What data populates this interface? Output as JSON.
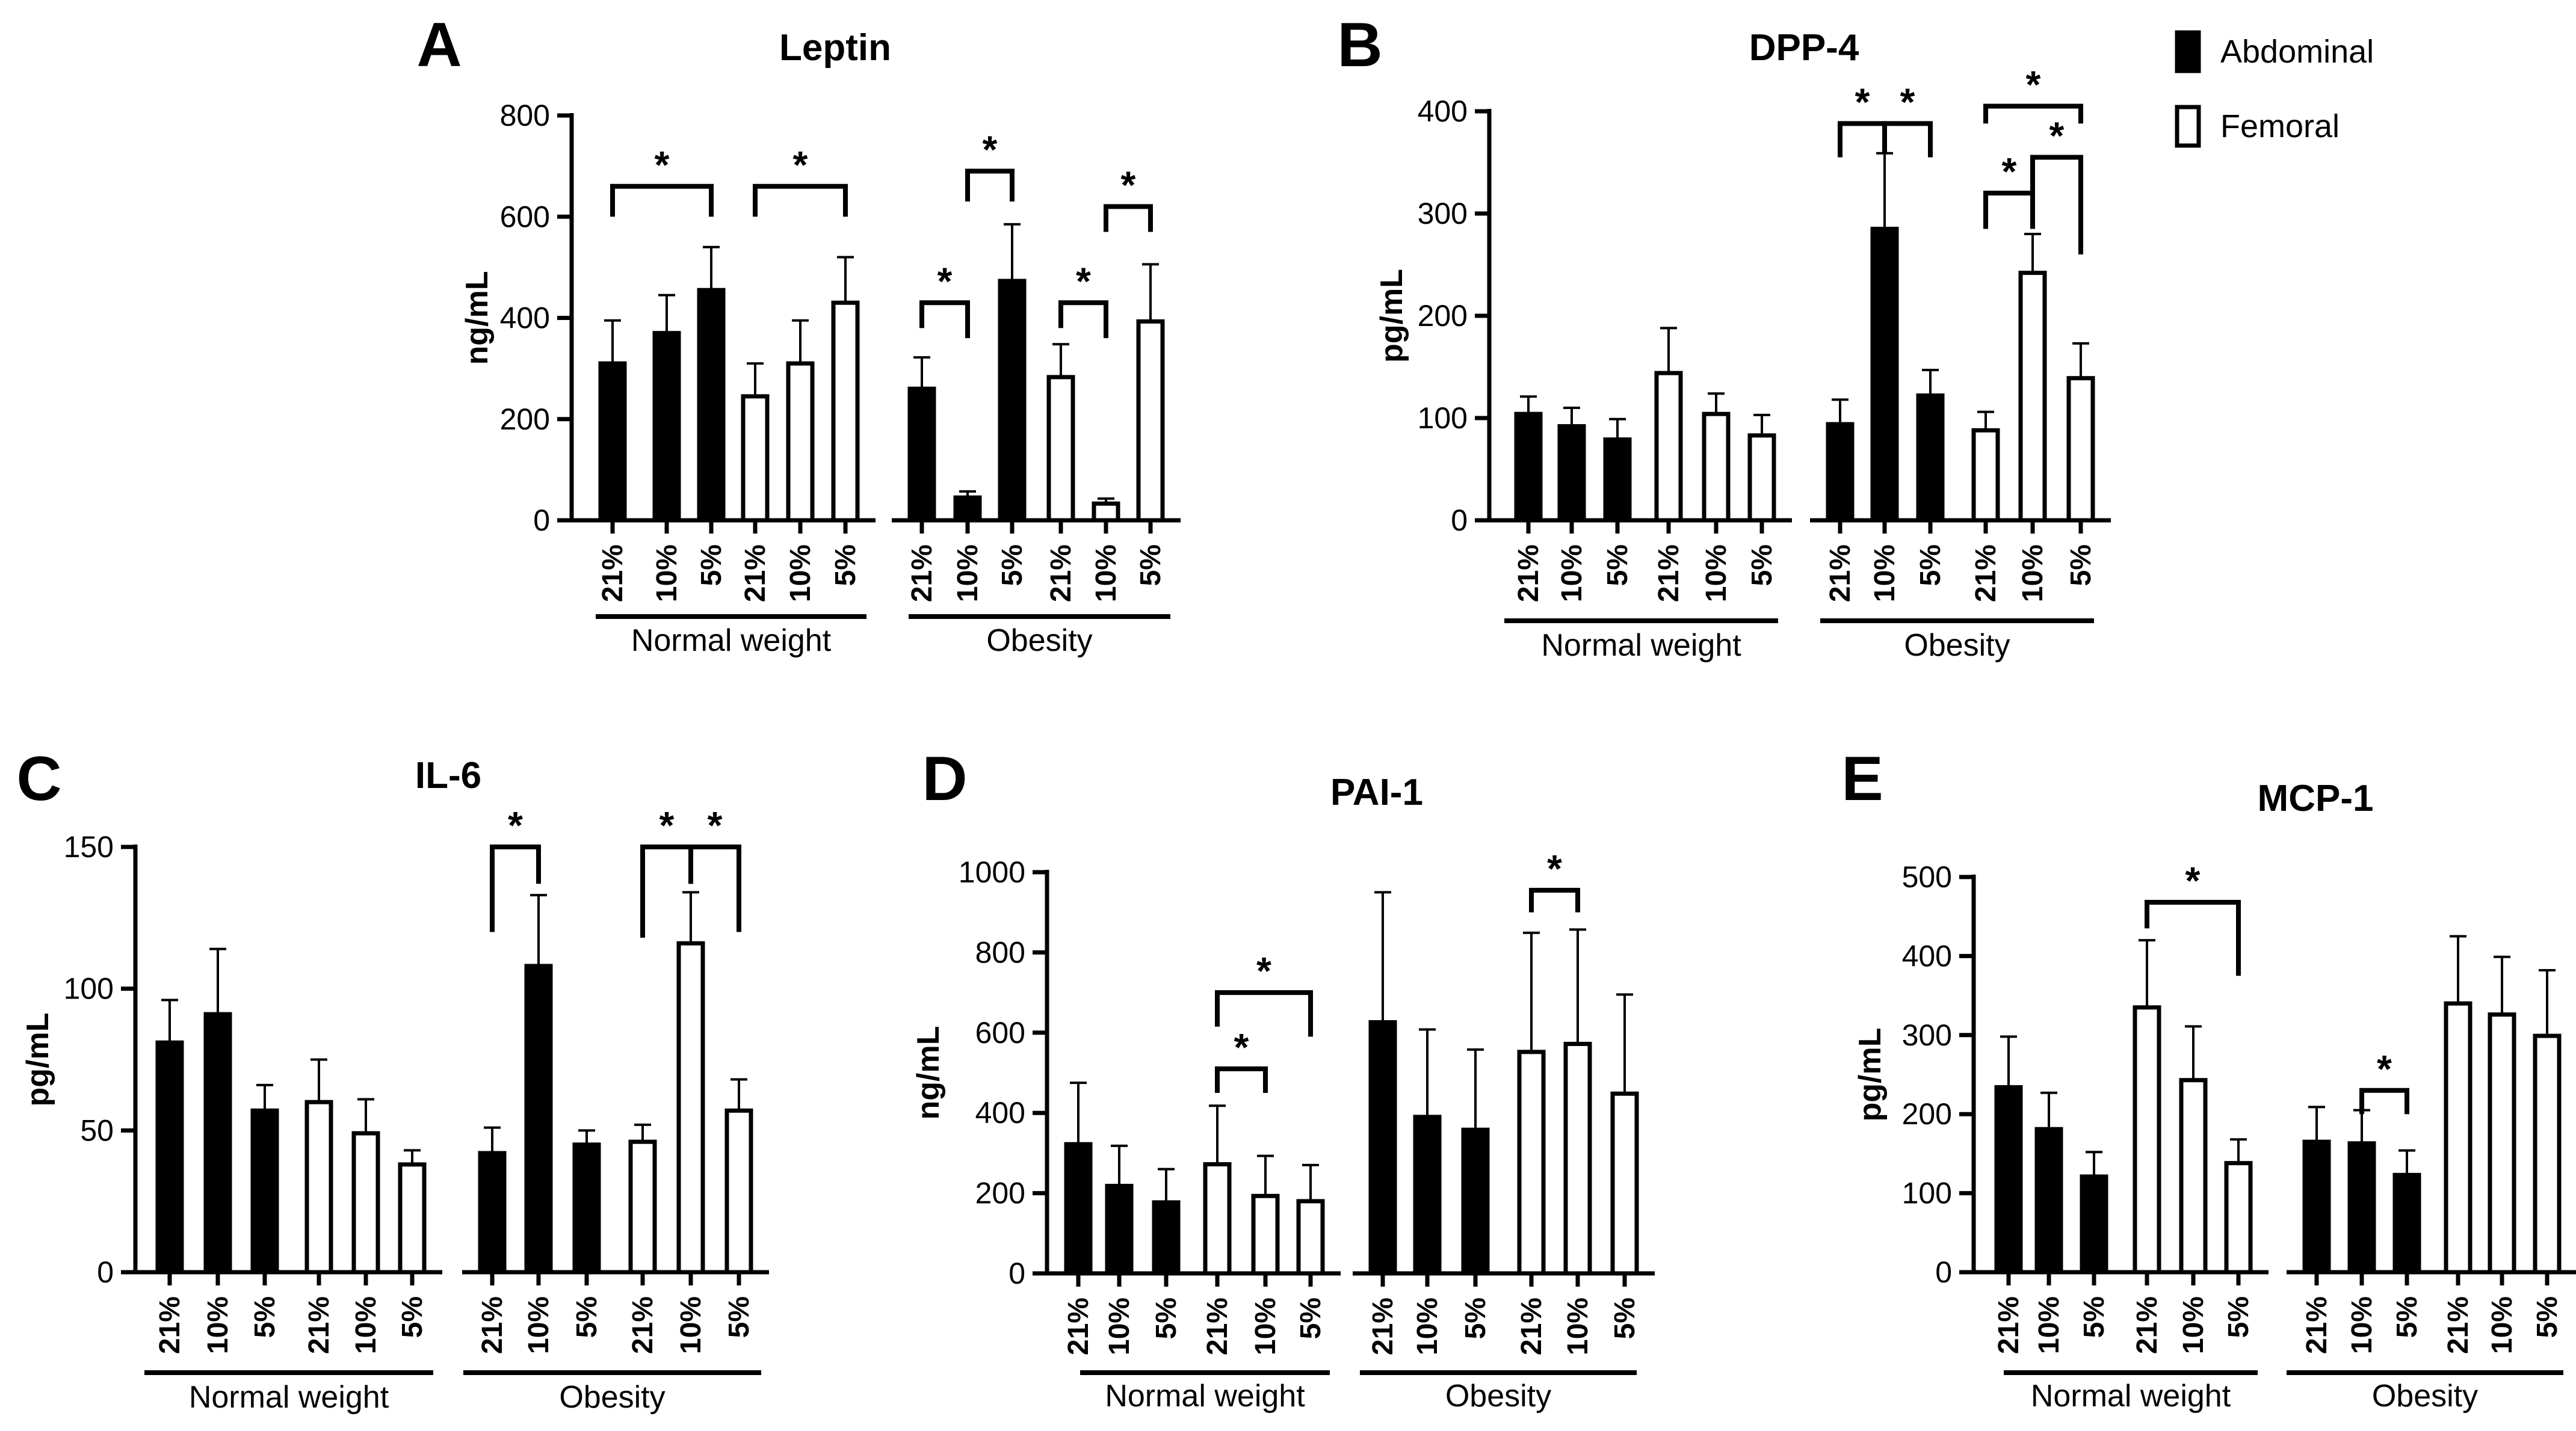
{
  "figure": {
    "legend": [
      {
        "name": "Abdominal",
        "fill": "#000000"
      },
      {
        "name": "Femoral",
        "fill": "#ffffff"
      }
    ]
  },
  "chart_data": [
    {
      "id": "A",
      "type": "bar",
      "panel": "A",
      "title": "Leptin",
      "ylabel": "ng/mL",
      "ylim": [
        0,
        800
      ],
      "yticks": [
        0,
        200,
        400,
        600,
        800
      ],
      "groups": [
        "Normal weight",
        "Obesity"
      ],
      "bars": [
        {
          "group": "Normal weight",
          "series": "Abdominal",
          "category": "21%",
          "value": 310,
          "error": 85
        },
        {
          "group": "Normal weight",
          "series": "Abdominal",
          "category": "10%",
          "value": 370,
          "error": 75
        },
        {
          "group": "Normal weight",
          "series": "Abdominal",
          "category": "5%",
          "value": 455,
          "error": 85
        },
        {
          "group": "Normal weight",
          "series": "Femoral",
          "category": "21%",
          "value": 245,
          "error": 65
        },
        {
          "group": "Normal weight",
          "series": "Femoral",
          "category": "10%",
          "value": 310,
          "error": 85
        },
        {
          "group": "Normal weight",
          "series": "Femoral",
          "category": "5%",
          "value": 430,
          "error": 90
        },
        {
          "group": "Obesity",
          "series": "Abdominal",
          "category": "21%",
          "value": 260,
          "error": 62
        },
        {
          "group": "Obesity",
          "series": "Abdominal",
          "category": "10%",
          "value": 45,
          "error": 12
        },
        {
          "group": "Obesity",
          "series": "Abdominal",
          "category": "5%",
          "value": 473,
          "error": 112
        },
        {
          "group": "Obesity",
          "series": "Femoral",
          "category": "21%",
          "value": 283,
          "error": 65
        },
        {
          "group": "Obesity",
          "series": "Femoral",
          "category": "10%",
          "value": 33,
          "error": 10
        },
        {
          "group": "Obesity",
          "series": "Femoral",
          "category": "5%",
          "value": 393,
          "error": 113
        }
      ],
      "significance": [
        {
          "from": 0,
          "to": 2,
          "y": 660,
          "left_end": 600,
          "right_end": 600,
          "label": "*"
        },
        {
          "from": 3,
          "to": 5,
          "y": 660,
          "left_end": 600,
          "right_end": 600,
          "label": "*"
        },
        {
          "from": 6,
          "to": 7,
          "y": 430,
          "left_end": 380,
          "right_end": 360,
          "label": "*"
        },
        {
          "from": 7,
          "to": 8,
          "y": 690,
          "left_end": 630,
          "right_end": 630,
          "label": "*"
        },
        {
          "from": 9,
          "to": 10,
          "y": 430,
          "left_end": 380,
          "right_end": 360,
          "label": "*"
        },
        {
          "from": 10,
          "to": 11,
          "y": 620,
          "left_end": 570,
          "right_end": 570,
          "label": "*"
        }
      ]
    },
    {
      "id": "B",
      "type": "bar",
      "panel": "B",
      "title": "DPP-4",
      "ylabel": "pg/mL",
      "ylim": [
        0,
        400
      ],
      "yticks": [
        0,
        100,
        200,
        300,
        400
      ],
      "groups": [
        "Normal weight",
        "Obesity"
      ],
      "bars": [
        {
          "group": "Normal weight",
          "series": "Abdominal",
          "category": "21%",
          "value": 104,
          "error": 17
        },
        {
          "group": "Normal weight",
          "series": "Abdominal",
          "category": "10%",
          "value": 92,
          "error": 18
        },
        {
          "group": "Normal weight",
          "series": "Abdominal",
          "category": "5%",
          "value": 79,
          "error": 20
        },
        {
          "group": "Normal weight",
          "series": "Femoral",
          "category": "21%",
          "value": 144,
          "error": 44
        },
        {
          "group": "Normal weight",
          "series": "Femoral",
          "category": "10%",
          "value": 104,
          "error": 20
        },
        {
          "group": "Normal weight",
          "series": "Femoral",
          "category": "5%",
          "value": 83,
          "error": 20
        },
        {
          "group": "Obesity",
          "series": "Abdominal",
          "category": "21%",
          "value": 94,
          "error": 24
        },
        {
          "group": "Obesity",
          "series": "Abdominal",
          "category": "10%",
          "value": 285,
          "error": 74
        },
        {
          "group": "Obesity",
          "series": "Abdominal",
          "category": "5%",
          "value": 122,
          "error": 25
        },
        {
          "group": "Obesity",
          "series": "Femoral",
          "category": "21%",
          "value": 88,
          "error": 18
        },
        {
          "group": "Obesity",
          "series": "Femoral",
          "category": "10%",
          "value": 242,
          "error": 38
        },
        {
          "group": "Obesity",
          "series": "Femoral",
          "category": "5%",
          "value": 139,
          "error": 34
        }
      ],
      "significance": [
        {
          "from": 6,
          "to": 7,
          "y": 388,
          "left_end": 355,
          "right_end": 360,
          "label": "*"
        },
        {
          "from": 7,
          "to": 8,
          "y": 388,
          "left_end": 360,
          "right_end": 355,
          "label": "*"
        },
        {
          "from": 9,
          "to": 11,
          "y": 405,
          "left_end": 388,
          "right_end": 388,
          "label": "*"
        },
        {
          "from": 9,
          "to": 10,
          "y": 320,
          "left_end": 285,
          "right_end": 285,
          "label": "*"
        },
        {
          "from": 10,
          "to": 11,
          "y": 355,
          "left_end": 320,
          "right_end": 260,
          "label": "*"
        }
      ]
    },
    {
      "id": "C",
      "type": "bar",
      "panel": "C",
      "title": "IL-6",
      "ylabel": "pg/mL",
      "ylim": [
        0,
        150
      ],
      "yticks": [
        0,
        50,
        100,
        150
      ],
      "groups": [
        "Normal weight",
        "Obesity"
      ],
      "bars": [
        {
          "group": "Normal weight",
          "series": "Abdominal",
          "category": "21%",
          "value": 81,
          "error": 15
        },
        {
          "group": "Normal weight",
          "series": "Abdominal",
          "category": "10%",
          "value": 91,
          "error": 23
        },
        {
          "group": "Normal weight",
          "series": "Abdominal",
          "category": "5%",
          "value": 57,
          "error": 9
        },
        {
          "group": "Normal weight",
          "series": "Femoral",
          "category": "21%",
          "value": 60,
          "error": 15
        },
        {
          "group": "Normal weight",
          "series": "Femoral",
          "category": "10%",
          "value": 49,
          "error": 12
        },
        {
          "group": "Normal weight",
          "series": "Femoral",
          "category": "5%",
          "value": 38,
          "error": 5
        },
        {
          "group": "Obesity",
          "series": "Abdominal",
          "category": "21%",
          "value": 42,
          "error": 9
        },
        {
          "group": "Obesity",
          "series": "Abdominal",
          "category": "10%",
          "value": 108,
          "error": 25
        },
        {
          "group": "Obesity",
          "series": "Abdominal",
          "category": "5%",
          "value": 45,
          "error": 5
        },
        {
          "group": "Obesity",
          "series": "Femoral",
          "category": "21%",
          "value": 46,
          "error": 6
        },
        {
          "group": "Obesity",
          "series": "Femoral",
          "category": "10%",
          "value": 116,
          "error": 18
        },
        {
          "group": "Obesity",
          "series": "Femoral",
          "category": "5%",
          "value": 57,
          "error": 11
        }
      ],
      "significance": [
        {
          "from": 6,
          "to": 7,
          "y": 150,
          "left_end": 120,
          "right_end": 137,
          "label": "*"
        },
        {
          "from": 9,
          "to": 10,
          "y": 150,
          "left_end": 118,
          "right_end": 137,
          "label": "*"
        },
        {
          "from": 10,
          "to": 11,
          "y": 150,
          "left_end": 137,
          "right_end": 120,
          "label": "*"
        }
      ]
    },
    {
      "id": "D",
      "type": "bar",
      "panel": "D",
      "title": "PAI-1",
      "ylabel": "ng/mL",
      "ylim": [
        0,
        1000
      ],
      "yticks": [
        0,
        200,
        400,
        600,
        800,
        1000
      ],
      "groups": [
        "Normal weight",
        "Obesity"
      ],
      "bars": [
        {
          "group": "Normal weight",
          "series": "Abdominal",
          "category": "21%",
          "value": 322,
          "error": 153
        },
        {
          "group": "Normal weight",
          "series": "Abdominal",
          "category": "10%",
          "value": 218,
          "error": 100
        },
        {
          "group": "Normal weight",
          "series": "Abdominal",
          "category": "5%",
          "value": 177,
          "error": 83
        },
        {
          "group": "Normal weight",
          "series": "Femoral",
          "category": "21%",
          "value": 272,
          "error": 146
        },
        {
          "group": "Normal weight",
          "series": "Femoral",
          "category": "10%",
          "value": 193,
          "error": 100
        },
        {
          "group": "Normal weight",
          "series": "Femoral",
          "category": "5%",
          "value": 180,
          "error": 90
        },
        {
          "group": "Obesity",
          "series": "Abdominal",
          "category": "21%",
          "value": 626,
          "error": 324
        },
        {
          "group": "Obesity",
          "series": "Abdominal",
          "category": "10%",
          "value": 390,
          "error": 218
        },
        {
          "group": "Obesity",
          "series": "Abdominal",
          "category": "5%",
          "value": 358,
          "error": 200
        },
        {
          "group": "Obesity",
          "series": "Femoral",
          "category": "21%",
          "value": 552,
          "error": 297
        },
        {
          "group": "Obesity",
          "series": "Femoral",
          "category": "10%",
          "value": 572,
          "error": 285
        },
        {
          "group": "Obesity",
          "series": "Femoral",
          "category": "5%",
          "value": 448,
          "error": 247
        }
      ],
      "significance": [
        {
          "from": 3,
          "to": 5,
          "y": 700,
          "left_end": 615,
          "right_end": 590,
          "label": "*"
        },
        {
          "from": 3,
          "to": 4,
          "y": 510,
          "left_end": 450,
          "right_end": 450,
          "label": "*"
        },
        {
          "from": 9,
          "to": 10,
          "y": 955,
          "left_end": 900,
          "right_end": 900,
          "label": "*"
        }
      ]
    },
    {
      "id": "E",
      "type": "bar",
      "panel": "E",
      "title": "MCP-1",
      "ylabel": "pg/mL",
      "ylim": [
        0,
        500
      ],
      "yticks": [
        0,
        100,
        200,
        300,
        400,
        500
      ],
      "groups": [
        "Normal weight",
        "Obesity"
      ],
      "bars": [
        {
          "group": "Normal weight",
          "series": "Abdominal",
          "category": "21%",
          "value": 234,
          "error": 64
        },
        {
          "group": "Normal weight",
          "series": "Abdominal",
          "category": "10%",
          "value": 181,
          "error": 46
        },
        {
          "group": "Normal weight",
          "series": "Abdominal",
          "category": "5%",
          "value": 121,
          "error": 31
        },
        {
          "group": "Normal weight",
          "series": "Femoral",
          "category": "21%",
          "value": 335,
          "error": 85
        },
        {
          "group": "Normal weight",
          "series": "Femoral",
          "category": "10%",
          "value": 243,
          "error": 68
        },
        {
          "group": "Normal weight",
          "series": "Femoral",
          "category": "5%",
          "value": 138,
          "error": 30
        },
        {
          "group": "Obesity",
          "series": "Abdominal",
          "category": "21%",
          "value": 165,
          "error": 44
        },
        {
          "group": "Obesity",
          "series": "Abdominal",
          "category": "10%",
          "value": 163,
          "error": 42
        },
        {
          "group": "Obesity",
          "series": "Abdominal",
          "category": "5%",
          "value": 123,
          "error": 31
        },
        {
          "group": "Obesity",
          "series": "Femoral",
          "category": "21%",
          "value": 340,
          "error": 85
        },
        {
          "group": "Obesity",
          "series": "Femoral",
          "category": "10%",
          "value": 326,
          "error": 73
        },
        {
          "group": "Obesity",
          "series": "Femoral",
          "category": "5%",
          "value": 299,
          "error": 83
        }
      ],
      "significance": [
        {
          "from": 3,
          "to": 5,
          "y": 468,
          "left_end": 435,
          "right_end": 375,
          "label": "*"
        },
        {
          "from": 7,
          "to": 8,
          "y": 230,
          "left_end": 200,
          "right_end": 200,
          "label": "*"
        }
      ]
    }
  ]
}
